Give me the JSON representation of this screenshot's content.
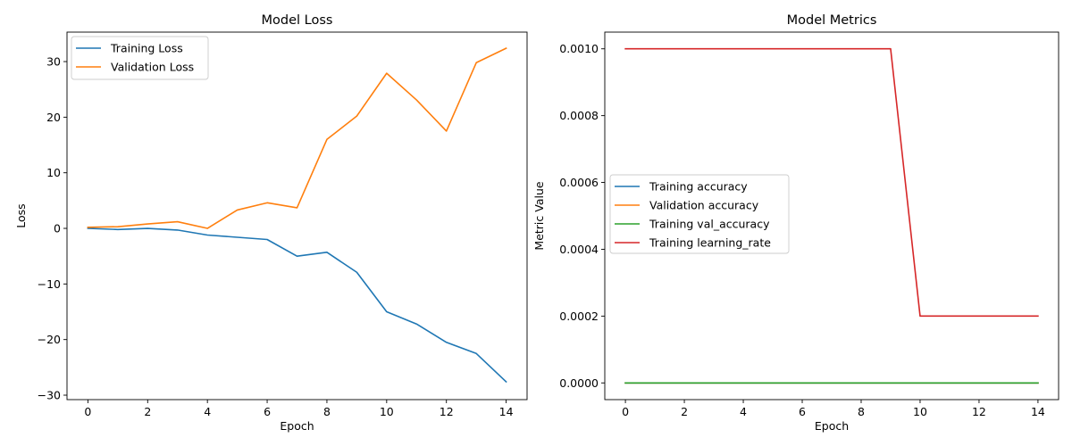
{
  "chart_data": [
    {
      "type": "line",
      "title": "Model Loss",
      "xlabel": "Epoch",
      "ylabel": "Loss",
      "xlim": [
        -0.7,
        14.7
      ],
      "ylim": [
        -30.8,
        35.3
      ],
      "xticks": [
        0,
        2,
        4,
        6,
        8,
        10,
        12,
        14
      ],
      "yticks": [
        -30,
        -20,
        -10,
        0,
        10,
        20,
        30
      ],
      "ytick_labels": [
        "−30",
        "−20",
        "−10",
        "0",
        "10",
        "20",
        "30"
      ],
      "grid": false,
      "legend_position": "upper left",
      "x": [
        0,
        1,
        2,
        3,
        4,
        5,
        6,
        7,
        8,
        9,
        10,
        11,
        12,
        13,
        14
      ],
      "series": [
        {
          "name": "Training Loss",
          "color": "#1f77b4",
          "values": [
            0.0,
            -0.2,
            0.0,
            -0.3,
            -1.2,
            -1.6,
            -2.0,
            -5.0,
            -4.3,
            -7.9,
            -15.0,
            -17.2,
            -20.5,
            -22.5,
            -27.6
          ]
        },
        {
          "name": "Validation Loss",
          "color": "#ff7f0e",
          "values": [
            0.2,
            0.3,
            0.8,
            1.2,
            0.0,
            3.3,
            4.6,
            3.7,
            16.0,
            20.2,
            27.9,
            23.1,
            17.5,
            29.8,
            32.4
          ]
        }
      ]
    },
    {
      "type": "line",
      "title": "Model Metrics",
      "xlabel": "Epoch",
      "ylabel": "Metric Value",
      "xlim": [
        -0.7,
        14.7
      ],
      "ylim": [
        -5e-05,
        0.00105
      ],
      "xticks": [
        0,
        2,
        4,
        6,
        8,
        10,
        12,
        14
      ],
      "yticks": [
        0.0,
        0.0002,
        0.0004,
        0.0006,
        0.0008,
        0.001
      ],
      "ytick_labels": [
        "0.0000",
        "0.0002",
        "0.0004",
        "0.0006",
        "0.0008",
        "0.0010"
      ],
      "grid": false,
      "legend_position": "center left",
      "x": [
        0,
        1,
        2,
        3,
        4,
        5,
        6,
        7,
        8,
        9,
        10,
        11,
        12,
        13,
        14
      ],
      "series": [
        {
          "name": "Training accuracy",
          "color": "#1f77b4",
          "values": [
            0,
            0,
            0,
            0,
            0,
            0,
            0,
            0,
            0,
            0,
            0,
            0,
            0,
            0,
            0
          ]
        },
        {
          "name": "Validation accuracy",
          "color": "#ff7f0e",
          "values": [
            0,
            0,
            0,
            0,
            0,
            0,
            0,
            0,
            0,
            0,
            0,
            0,
            0,
            0,
            0
          ]
        },
        {
          "name": "Training val_accuracy",
          "color": "#2ca02c",
          "values": [
            0,
            0,
            0,
            0,
            0,
            0,
            0,
            0,
            0,
            0,
            0,
            0,
            0,
            0,
            0
          ]
        },
        {
          "name": "Training learning_rate",
          "color": "#d62728",
          "values": [
            0.001,
            0.001,
            0.001,
            0.001,
            0.001,
            0.001,
            0.001,
            0.001,
            0.001,
            0.001,
            0.0002,
            0.0002,
            0.0002,
            0.0002,
            0.0002
          ]
        }
      ]
    }
  ]
}
